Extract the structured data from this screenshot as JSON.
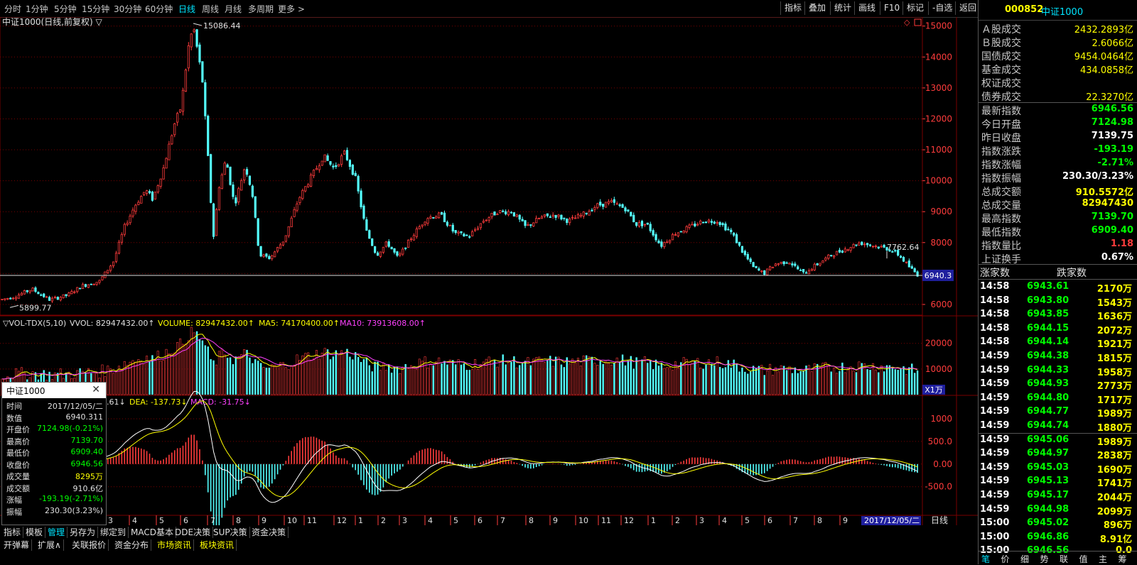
{
  "colors": {
    "up": "#ff3c3c",
    "down": "#54ffff",
    "ma5": "#ffff00",
    "ma10": "#ff40ff",
    "grid": "#8b0000",
    "yellow": "#ffff00",
    "green": "#00ff00",
    "cyan": "#00e5ff"
  },
  "timeframes": [
    "分时",
    "1分钟",
    "5分钟",
    "15分钟",
    "30分钟",
    "60分钟",
    "日线",
    "周线",
    "月线",
    "多周期",
    "更多 >"
  ],
  "active_timeframe": "日线",
  "tools": [
    "指标",
    "叠加",
    "统计",
    "画线",
    "F10",
    "标记",
    "-自选",
    "返回"
  ],
  "chart": {
    "title": "中证1000(日线,前复权) ▽",
    "high_label": "15086.44",
    "low_label": "5899.77",
    "recent_label": "7762.64",
    "last_price": "6940.3",
    "price_ticks": [
      "15000",
      "14000",
      "13000",
      "12000",
      "11000",
      "10000",
      "9000",
      "8000",
      "7000",
      "6000"
    ],
    "vol_header": {
      "name": "▽VOL-TDX(5,10)",
      "vvol": "VVOL: 82947432.00↑",
      "volume": "VOLUME: 82947432.00↑",
      "ma5": "MA5: 74170400.00↑",
      "ma10": "MA10: 73913608.00↑"
    },
    "vol_ticks": [
      "20000",
      "10000"
    ],
    "vol_unit": "X1万",
    "macd_header": {
      "lead": ".61↓",
      "dea": "DEA: -137.73↓",
      "macd": "MACD: -31.75↓"
    },
    "macd_ticks": [
      "1000",
      "500.0",
      "0.00",
      "-500.0"
    ],
    "x_labels": [
      "3",
      "4",
      "5",
      "6",
      "7",
      "8",
      "9",
      "10",
      "11",
      "12",
      "1",
      "2",
      "3",
      "4",
      "5",
      "6",
      "7",
      "8",
      "9",
      "10",
      "11",
      "12",
      "1",
      "2",
      "3",
      "4",
      "5",
      "6",
      "7",
      "8",
      "9"
    ],
    "date_label": "2017/12/05/二",
    "period_label": "日线",
    "zoom_plus": "+",
    "zoom_minus": "−"
  },
  "tooltip": {
    "title": "中证1000",
    "close": "✕",
    "rows": [
      {
        "k": "时间",
        "v": "2017/12/05/二",
        "c": "#e0e0e0"
      },
      {
        "k": "数值",
        "v": "6940.311",
        "c": "#e0e0e0"
      },
      {
        "k": "开盘价",
        "v": "7124.98(-0.21%)",
        "c": "#00ff00"
      },
      {
        "k": "最高价",
        "v": "7139.70",
        "c": "#00ff00"
      },
      {
        "k": "最低价",
        "v": "6909.40",
        "c": "#00ff00"
      },
      {
        "k": "收盘价",
        "v": "6946.56",
        "c": "#00ff00"
      },
      {
        "k": "成交量",
        "v": "8295万",
        "c": "#ffff00"
      },
      {
        "k": "成交额",
        "v": "910.6亿",
        "c": "#e0e0e0"
      },
      {
        "k": "涨幅",
        "v": "-193.19(-2.71%)",
        "c": "#00ff00"
      },
      {
        "k": "振幅",
        "v": "230.30(3.23%)",
        "c": "#e0e0e0"
      }
    ]
  },
  "bottom_tabs": [
    "指标",
    "模板",
    "管理",
    "另存为",
    "绑定到",
    "MACD基本",
    "DDE决策",
    "SUP决策",
    "资金决策"
  ],
  "bottom_tabs_active": "管理",
  "bottom_tabs2": [
    "开弹幕",
    "扩展∧",
    "关联报价",
    "资金分布",
    "市场资讯",
    "板块资讯"
  ],
  "right": {
    "code": "000852",
    "name": "中证1000",
    "turnover_rows": [
      {
        "label": "Ａ股成交",
        "value": "2432.2893亿"
      },
      {
        "label": "Ｂ股成交",
        "value": "2.6066亿"
      },
      {
        "label": "国债成交",
        "value": "9454.0464亿"
      },
      {
        "label": "基金成交",
        "value": "434.0858亿"
      },
      {
        "label": "权证成交",
        "value": ""
      },
      {
        "label": "债券成交",
        "value": "22.3270亿"
      }
    ],
    "index_rows": [
      {
        "label": "最新指数",
        "value": "6946.56",
        "c": "#00ff00"
      },
      {
        "label": "今日开盘",
        "value": "7124.98",
        "c": "#00ff00"
      },
      {
        "label": "昨日收盘",
        "value": "7139.75",
        "c": "#ffffff"
      },
      {
        "label": "指数涨跌",
        "value": "-193.19",
        "c": "#00ff00"
      },
      {
        "label": "指数涨幅",
        "value": "-2.71%",
        "c": "#00ff00"
      },
      {
        "label": "指数振幅",
        "value": "230.30/3.23%",
        "c": "#ffffff"
      },
      {
        "label": "总成交额",
        "value": "910.5572亿",
        "c": "#ffff00"
      },
      {
        "label": "总成交量",
        "value": "82947430",
        "c": "#ffff00"
      },
      {
        "label": "最高指数",
        "value": "7139.70",
        "c": "#00ff00"
      },
      {
        "label": "最低指数",
        "value": "6909.40",
        "c": "#00ff00"
      },
      {
        "label": "指数量比",
        "value": "1.18",
        "c": "#ff3c3c"
      },
      {
        "label": "上证换手",
        "value": "0.67%",
        "c": "#ffffff"
      }
    ],
    "rise_label": "涨家数",
    "fall_label": "跌家数",
    "ticks": [
      {
        "t": "14:58",
        "p": "6943.61",
        "v": "2170万"
      },
      {
        "t": "14:58",
        "p": "6943.80",
        "v": "1543万"
      },
      {
        "t": "14:58",
        "p": "6943.85",
        "v": "1636万"
      },
      {
        "t": "14:58",
        "p": "6944.15",
        "v": "2072万"
      },
      {
        "t": "14:58",
        "p": "6944.14",
        "v": "1921万"
      },
      {
        "t": "14:59",
        "p": "6944.38",
        "v": "1815万"
      },
      {
        "t": "14:59",
        "p": "6944.33",
        "v": "1958万"
      },
      {
        "t": "14:59",
        "p": "6944.93",
        "v": "2773万"
      },
      {
        "t": "14:59",
        "p": "6944.80",
        "v": "1717万"
      },
      {
        "t": "14:59",
        "p": "6944.77",
        "v": "1989万"
      },
      {
        "t": "14:59",
        "p": "6944.74",
        "v": "1880万"
      },
      {
        "t": "14:59",
        "p": "6945.06",
        "v": "1989万"
      },
      {
        "t": "14:59",
        "p": "6944.97",
        "v": "2838万"
      },
      {
        "t": "14:59",
        "p": "6945.03",
        "v": "1690万"
      },
      {
        "t": "14:59",
        "p": "6945.13",
        "v": "1741万"
      },
      {
        "t": "14:59",
        "p": "6945.17",
        "v": "2044万"
      },
      {
        "t": "14:59",
        "p": "6944.98",
        "v": "2099万"
      },
      {
        "t": "15:00",
        "p": "6945.02",
        "v": "896万"
      },
      {
        "t": "15:00",
        "p": "6946.86",
        "v": "8.91亿"
      },
      {
        "t": "15:00",
        "p": "6946.56",
        "v": "0.0"
      }
    ],
    "foot_tabs": [
      "笔",
      "价",
      "细",
      "势",
      "联",
      "值",
      "主",
      "筹"
    ]
  }
}
